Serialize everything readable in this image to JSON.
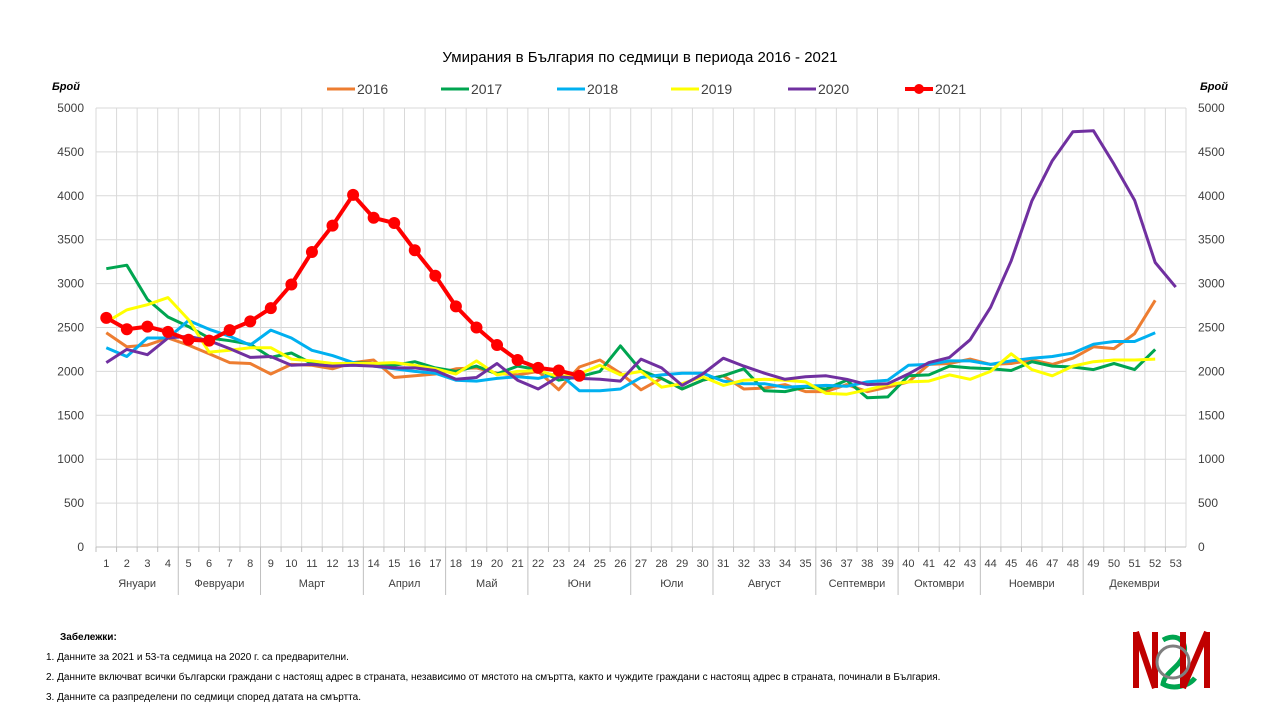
{
  "chart_data": {
    "type": "line",
    "title": "Умирания в България по седмици в периода 2016 - 2021",
    "ylabel_left": "Брой",
    "ylabel_right": "Брой",
    "ylim": [
      0,
      5000
    ],
    "yticks": [
      "0",
      "500",
      "1000",
      "1500",
      "2000",
      "2500",
      "3000",
      "3500",
      "4000",
      "4500",
      "5000"
    ],
    "x": [
      "1",
      "2",
      "3",
      "4",
      "5",
      "6",
      "7",
      "8",
      "9",
      "10",
      "11",
      "12",
      "13",
      "14",
      "15",
      "16",
      "17",
      "18",
      "19",
      "20",
      "21",
      "22",
      "23",
      "24",
      "25",
      "26",
      "27",
      "28",
      "29",
      "30",
      "31",
      "32",
      "33",
      "34",
      "35",
      "36",
      "37",
      "38",
      "39",
      "40",
      "41",
      "42",
      "43",
      "44",
      "45",
      "46",
      "47",
      "48",
      "49",
      "50",
      "51",
      "52",
      "53"
    ],
    "months": [
      {
        "label": "Януари",
        "from": 1,
        "to": 4
      },
      {
        "label": "Февруари",
        "from": 5,
        "to": 8
      },
      {
        "label": "Март",
        "from": 9,
        "to": 13
      },
      {
        "label": "Април",
        "from": 14,
        "to": 17
      },
      {
        "label": "Май",
        "from": 18,
        "to": 21
      },
      {
        "label": "Юни",
        "from": 22,
        "to": 26
      },
      {
        "label": "Юли",
        "from": 27,
        "to": 30
      },
      {
        "label": "Август",
        "from": 31,
        "to": 35
      },
      {
        "label": "Септември",
        "from": 36,
        "to": 39
      },
      {
        "label": "Октомври",
        "from": 40,
        "to": 43
      },
      {
        "label": "Ноември",
        "from": 44,
        "to": 48
      },
      {
        "label": "Декември",
        "from": 49,
        "to": 53
      }
    ],
    "grid": true,
    "legend": "top",
    "series": [
      {
        "name": "2016",
        "color": "#ED7D31",
        "markers": false,
        "values": [
          2440,
          2280,
          2300,
          2380,
          2300,
          2200,
          2100,
          2090,
          1970,
          2080,
          2070,
          2030,
          2100,
          2130,
          1930,
          1950,
          1970,
          2030,
          2040,
          1980,
          1960,
          2000,
          1790,
          2050,
          2130,
          1980,
          1790,
          1920,
          1800,
          1900,
          1950,
          1800,
          1810,
          1850,
          1770,
          1770,
          1850,
          1770,
          1820,
          1880,
          2080,
          2090,
          2140,
          2080,
          2090,
          2130,
          2080,
          2150,
          2280,
          2260,
          2430,
          2810,
          null
        ]
      },
      {
        "name": "2017",
        "color": "#00A550",
        "markers": false,
        "values": [
          3170,
          3210,
          2820,
          2620,
          2510,
          2380,
          2350,
          2310,
          2160,
          2210,
          2090,
          2080,
          2100,
          2090,
          2070,
          2110,
          2040,
          2000,
          2060,
          1970,
          2060,
          2020,
          1900,
          1940,
          2000,
          2290,
          2010,
          1920,
          1800,
          1900,
          1950,
          2030,
          1780,
          1770,
          1820,
          1800,
          1900,
          1700,
          1710,
          1950,
          1960,
          2060,
          2040,
          2030,
          2010,
          2110,
          2060,
          2050,
          2020,
          2090,
          2020,
          2250,
          null
        ]
      },
      {
        "name": "2018",
        "color": "#00B0F0",
        "markers": false,
        "values": [
          2270,
          2170,
          2380,
          2380,
          2580,
          2480,
          2400,
          2300,
          2470,
          2380,
          2240,
          2180,
          2100,
          2060,
          2030,
          2000,
          1980,
          1900,
          1890,
          1920,
          1940,
          1920,
          1980,
          1780,
          1780,
          1800,
          1930,
          1960,
          1980,
          1980,
          1890,
          1860,
          1860,
          1820,
          1830,
          1840,
          1830,
          1880,
          1900,
          2070,
          2080,
          2120,
          2120,
          2080,
          2120,
          2150,
          2170,
          2210,
          2310,
          2340,
          2340,
          2440,
          null
        ]
      },
      {
        "name": "2019",
        "color": "#FFFF00",
        "markers": false,
        "values": [
          2560,
          2700,
          2760,
          2840,
          2590,
          2220,
          2240,
          2270,
          2270,
          2140,
          2120,
          2090,
          2090,
          2090,
          2100,
          2070,
          2030,
          1970,
          2120,
          1960,
          2000,
          2010,
          1940,
          1970,
          2070,
          1960,
          2000,
          1820,
          1860,
          1940,
          1840,
          1900,
          1910,
          1900,
          1880,
          1750,
          1740,
          1790,
          1850,
          1880,
          1890,
          1960,
          1910,
          2000,
          2200,
          2020,
          1950,
          2060,
          2110,
          2130,
          2130,
          2140,
          null
        ]
      },
      {
        "name": "2020",
        "color": "#7030A0",
        "markers": false,
        "values": [
          2100,
          2250,
          2190,
          2380,
          2400,
          2350,
          2260,
          2160,
          2170,
          2070,
          2080,
          2060,
          2070,
          2060,
          2040,
          2040,
          2010,
          1910,
          1930,
          2090,
          1900,
          1800,
          1940,
          1920,
          1910,
          1890,
          2140,
          2040,
          1840,
          1970,
          2150,
          2060,
          1980,
          1910,
          1940,
          1950,
          1910,
          1850,
          1860,
          1970,
          2100,
          2160,
          2360,
          2730,
          3260,
          3940,
          4400,
          4730,
          4740,
          4360,
          3950,
          3240,
          2960
        ]
      },
      {
        "name": "2021",
        "color": "#FF0000",
        "markers": true,
        "values": [
          2610,
          2480,
          2510,
          2450,
          2360,
          2350,
          2470,
          2570,
          2720,
          2990,
          3360,
          3660,
          4010,
          3750,
          3690,
          3380,
          3090,
          2740,
          2500,
          2300,
          2130,
          2040,
          2010,
          1950,
          null,
          null,
          null,
          null,
          null,
          null,
          null,
          null,
          null,
          null,
          null,
          null,
          null,
          null,
          null,
          null,
          null,
          null,
          null,
          null,
          null,
          null,
          null,
          null,
          null,
          null,
          null,
          null,
          null
        ]
      }
    ]
  },
  "notes": {
    "title": "Забележки:",
    "items": [
      "1. Данните за 2021 и 53-та седмица на 2020 г. са предварителни.",
      "2. Данните включват всички български граждани с настоящ адрес в страната, независимо от мястото на смъртта, както и чуждите граждани с настоящ адрес в страната, починали в България.",
      "3. Данните са разпределени по седмици според датата на смъртта."
    ]
  },
  "logo": {
    "colors": [
      "#C00000",
      "#00A550",
      "#7F7F7F"
    ]
  }
}
